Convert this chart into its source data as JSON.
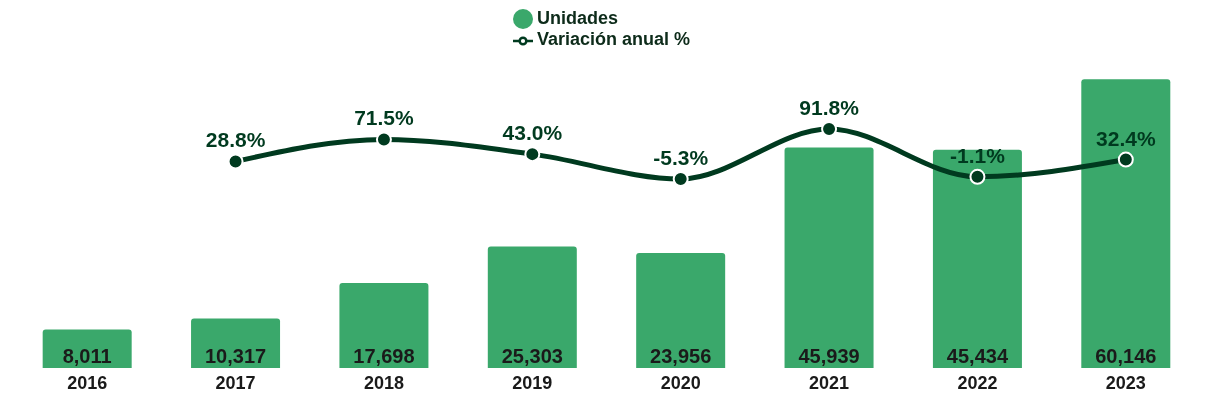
{
  "chart_data": {
    "type": "bar",
    "categories": [
      "2016",
      "2017",
      "2018",
      "2019",
      "2020",
      "2021",
      "2022",
      "2023"
    ],
    "series": [
      {
        "name": "Unidades",
        "color": "#3aa86b",
        "values": [
          8011,
          10317,
          17698,
          25303,
          23956,
          45939,
          45434,
          60146
        ],
        "value_labels": [
          "8,011",
          "10,317",
          "17,698",
          "25,303",
          "23,956",
          "45,939",
          "45,434",
          "60,146"
        ]
      },
      {
        "name": "Variación anual %",
        "type": "line",
        "axis": "y2",
        "color": "#003a1f",
        "marker": "circle",
        "values": [
          null,
          28.8,
          71.5,
          43.0,
          -5.3,
          91.8,
          -1.1,
          32.4
        ],
        "value_labels": [
          null,
          "28.8%",
          "71.5%",
          "43.0%",
          "-5.3%",
          "91.8%",
          "-1.1%",
          "32.4%"
        ]
      }
    ],
    "tick_labels": "x",
    "legend": "top",
    "grid": false
  }
}
